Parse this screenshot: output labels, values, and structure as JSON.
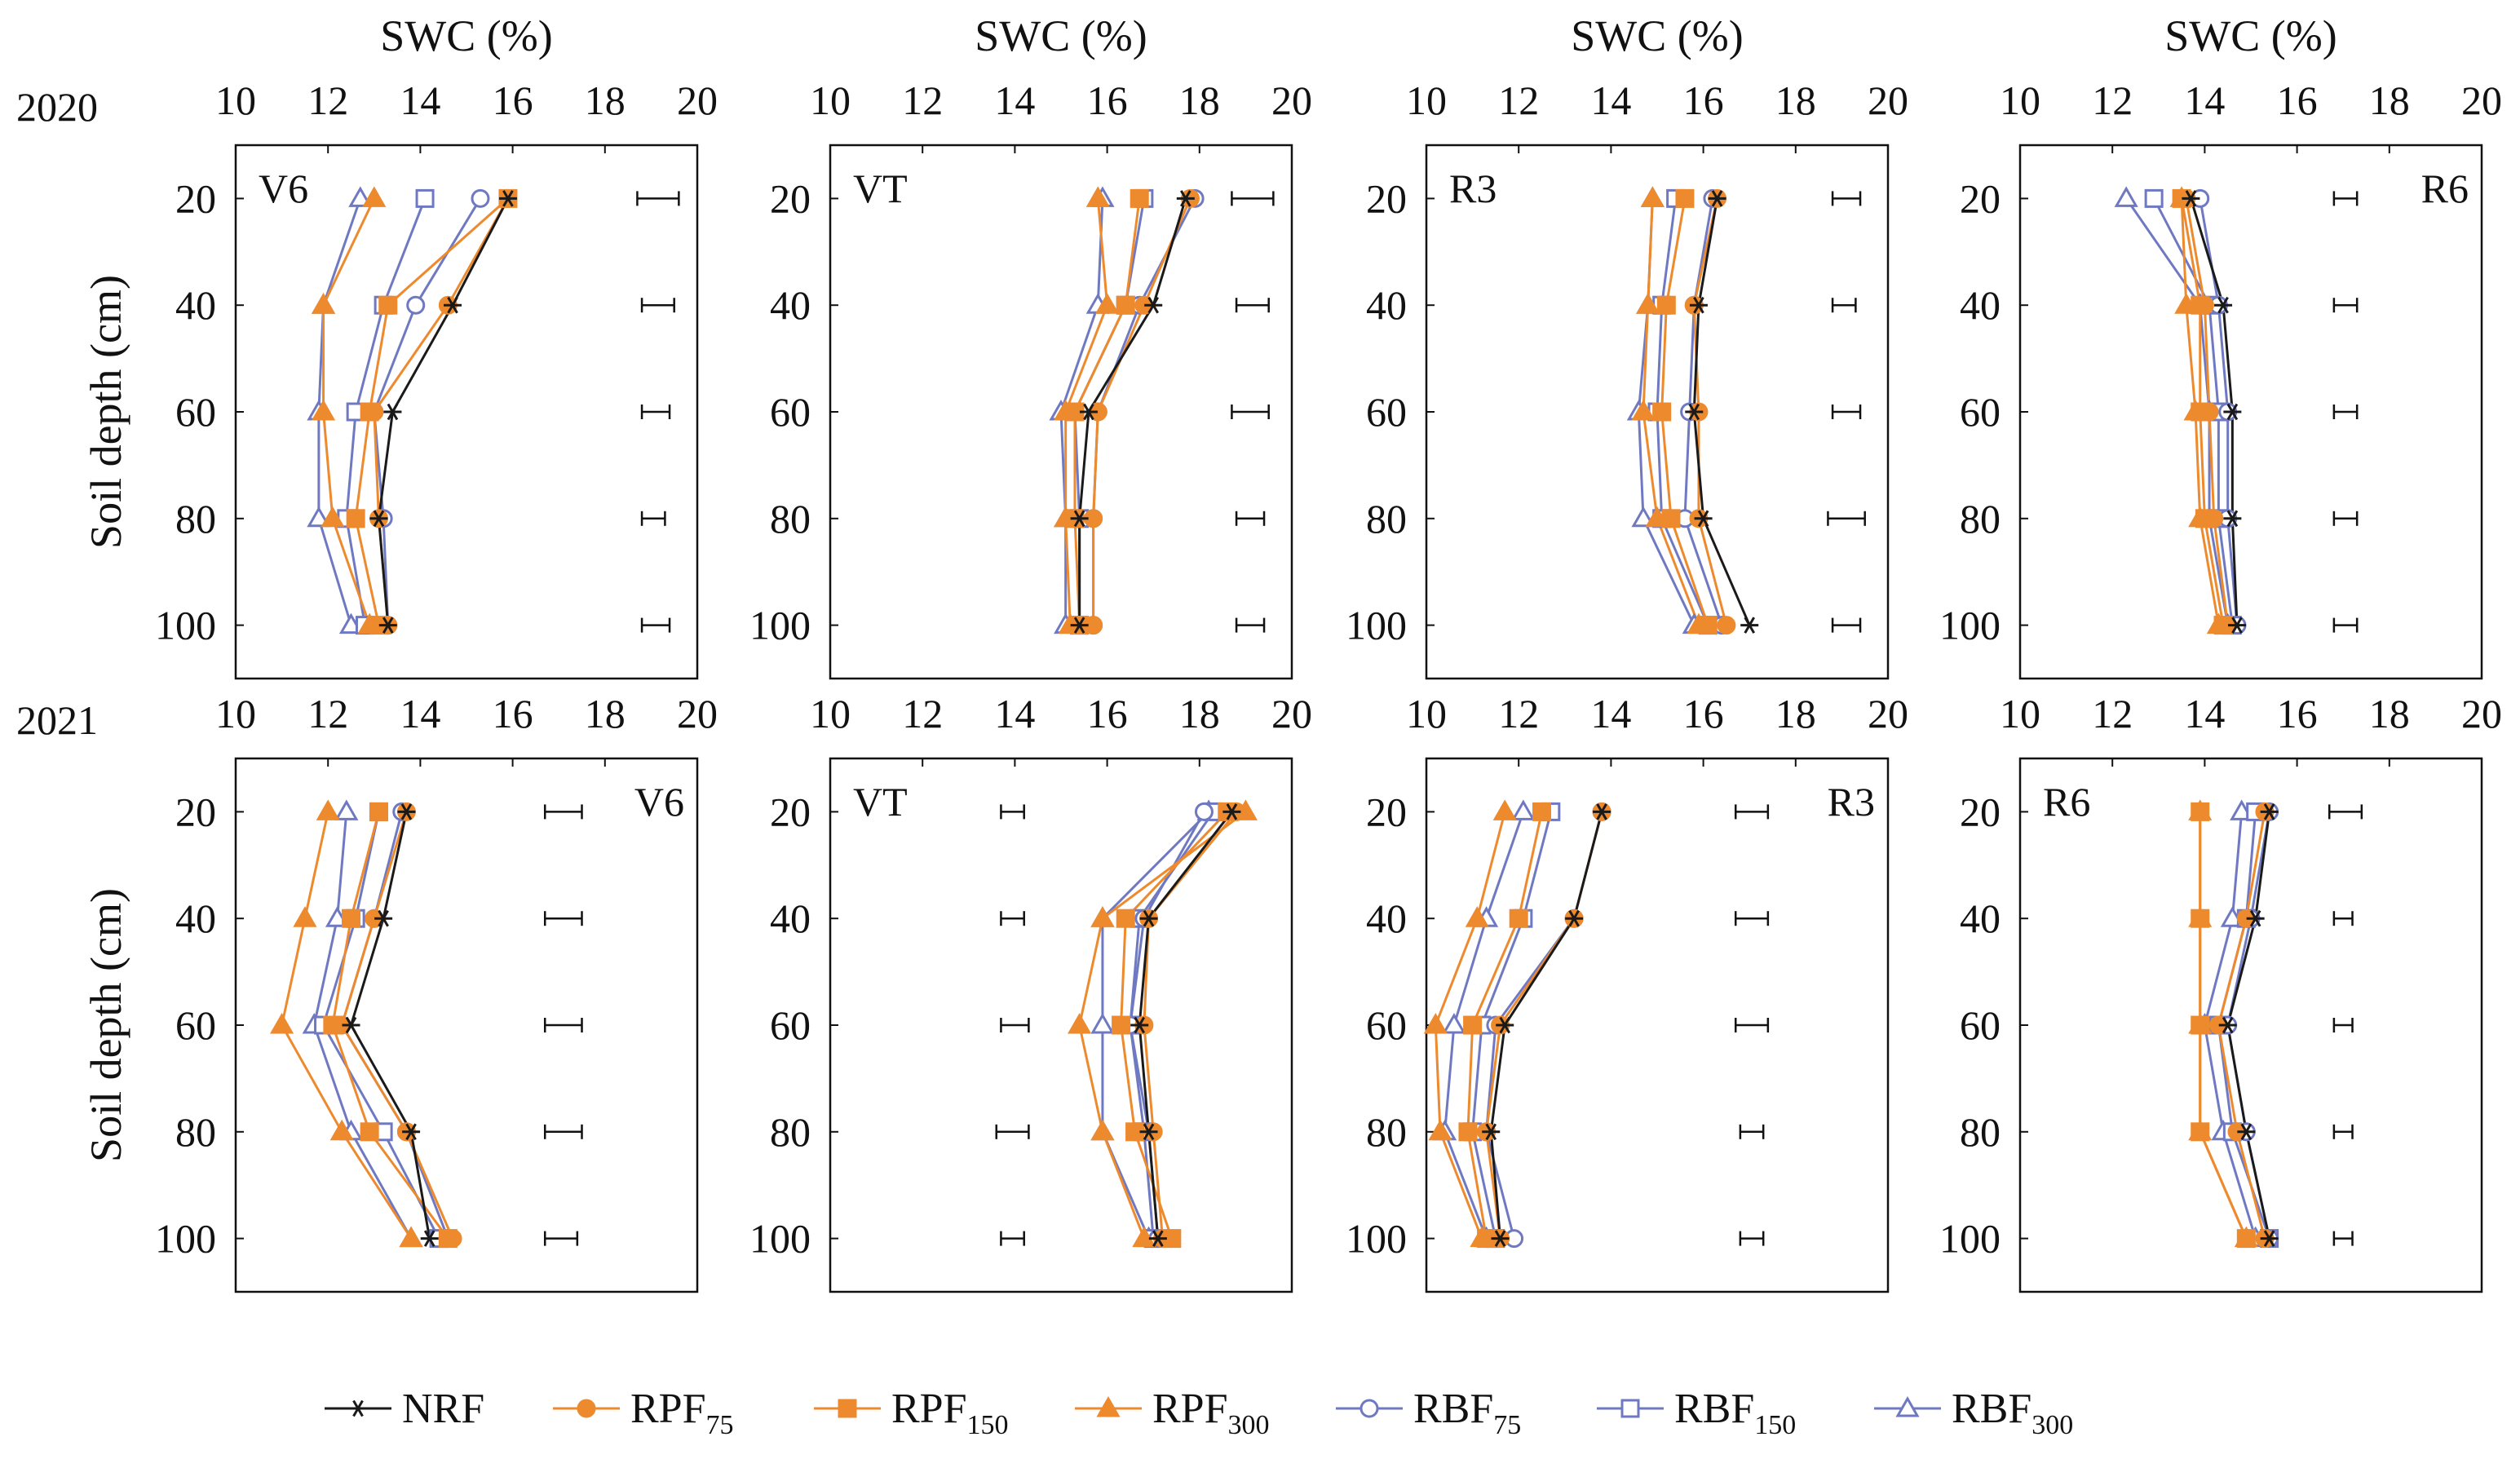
{
  "legend": [
    {
      "key": "NRF",
      "name": "NRF",
      "sub": "",
      "color": "#1a1a1a",
      "marker": "asterisk"
    },
    {
      "key": "RPF75",
      "name": "RPF",
      "sub": "75",
      "color": "#ee8a2e",
      "marker": "circle-filled"
    },
    {
      "key": "RPF150",
      "name": "RPF",
      "sub": "150",
      "color": "#ee8a2e",
      "marker": "square-filled"
    },
    {
      "key": "RPF300",
      "name": "RPF",
      "sub": "300",
      "color": "#ee8a2e",
      "marker": "triangle-filled"
    },
    {
      "key": "RBF75",
      "name": "RBF",
      "sub": "75",
      "color": "#6f79c2",
      "marker": "circle-open"
    },
    {
      "key": "RBF150",
      "name": "RBF",
      "sub": "150",
      "color": "#6f79c2",
      "marker": "square-open"
    },
    {
      "key": "RBF300",
      "name": "RBF",
      "sub": "300",
      "color": "#6f79c2",
      "marker": "triangle-open"
    }
  ],
  "chart_data": [
    {
      "type": "line",
      "year": "2020",
      "stage": "V6",
      "stage_pos": "top-left",
      "xlabel": "SWC (%)",
      "ylabel": "Soil depth (cm)",
      "xlim": [
        10,
        20
      ],
      "ylim": [
        10,
        110
      ],
      "xticks": [
        10,
        12,
        14,
        16,
        18,
        20
      ],
      "yticks": [
        20,
        40,
        60,
        80,
        100
      ],
      "depths": [
        20,
        40,
        60,
        80,
        100
      ],
      "series": [
        {
          "key": "NRF",
          "values": [
            15.9,
            14.7,
            13.4,
            13.1,
            13.3
          ]
        },
        {
          "key": "RPF75",
          "values": [
            15.9,
            14.6,
            13.0,
            13.1,
            13.3
          ]
        },
        {
          "key": "RPF150",
          "values": [
            15.9,
            13.3,
            12.9,
            12.6,
            13.1
          ]
        },
        {
          "key": "RPF300",
          "values": [
            13.0,
            11.9,
            11.9,
            12.1,
            12.9
          ]
        },
        {
          "key": "RBF75",
          "values": [
            15.3,
            13.9,
            13.0,
            13.2,
            13.3
          ]
        },
        {
          "key": "RBF150",
          "values": [
            14.1,
            13.2,
            12.6,
            12.4,
            12.8
          ]
        },
        {
          "key": "RBF300",
          "values": [
            12.7,
            11.9,
            11.8,
            11.8,
            12.5
          ]
        }
      ],
      "error_bars": [
        {
          "depth": 20,
          "low": 18.7,
          "high": 19.6
        },
        {
          "depth": 40,
          "low": 18.8,
          "high": 19.5
        },
        {
          "depth": 60,
          "low": 18.8,
          "high": 19.4
        },
        {
          "depth": 80,
          "low": 18.8,
          "high": 19.3
        },
        {
          "depth": 100,
          "low": 18.8,
          "high": 19.4
        }
      ]
    },
    {
      "type": "line",
      "year": "2020",
      "stage": "VT",
      "stage_pos": "top-left",
      "xlabel": "SWC (%)",
      "ylabel": "",
      "xlim": [
        10,
        20
      ],
      "ylim": [
        10,
        110
      ],
      "xticks": [
        10,
        12,
        14,
        16,
        18,
        20
      ],
      "yticks": [
        20,
        40,
        60,
        80,
        100
      ],
      "depths": [
        20,
        40,
        60,
        80,
        100
      ],
      "series": [
        {
          "key": "NRF",
          "values": [
            17.7,
            17.0,
            15.6,
            15.4,
            15.4
          ]
        },
        {
          "key": "RPF75",
          "values": [
            17.8,
            16.8,
            15.8,
            15.7,
            15.7
          ]
        },
        {
          "key": "RPF150",
          "values": [
            16.7,
            16.4,
            15.3,
            15.3,
            15.4
          ]
        },
        {
          "key": "RPF300",
          "values": [
            15.8,
            16.0,
            15.1,
            15.1,
            15.2
          ]
        },
        {
          "key": "RBF75",
          "values": [
            17.9,
            16.7,
            15.8,
            15.7,
            15.7
          ]
        },
        {
          "key": "RBF150",
          "values": [
            16.8,
            16.4,
            15.3,
            15.4,
            15.4
          ]
        },
        {
          "key": "RBF300",
          "values": [
            15.9,
            15.8,
            15.0,
            15.1,
            15.1
          ]
        }
      ],
      "error_bars": [
        {
          "depth": 20,
          "low": 18.7,
          "high": 19.6
        },
        {
          "depth": 40,
          "low": 18.8,
          "high": 19.5
        },
        {
          "depth": 60,
          "low": 18.7,
          "high": 19.5
        },
        {
          "depth": 80,
          "low": 18.8,
          "high": 19.4
        },
        {
          "depth": 100,
          "low": 18.8,
          "high": 19.4
        }
      ]
    },
    {
      "type": "line",
      "year": "2020",
      "stage": "R3",
      "stage_pos": "top-left",
      "xlabel": "SWC (%)",
      "ylabel": "",
      "xlim": [
        10,
        20
      ],
      "ylim": [
        10,
        110
      ],
      "xticks": [
        10,
        12,
        14,
        16,
        18,
        20
      ],
      "yticks": [
        20,
        40,
        60,
        80,
        100
      ],
      "depths": [
        20,
        40,
        60,
        80,
        100
      ],
      "series": [
        {
          "key": "NRF",
          "values": [
            16.3,
            15.9,
            15.8,
            16.0,
            17.0
          ]
        },
        {
          "key": "RPF75",
          "values": [
            16.3,
            15.8,
            15.9,
            15.9,
            16.5
          ]
        },
        {
          "key": "RPF150",
          "values": [
            15.6,
            15.2,
            15.1,
            15.3,
            16.1
          ]
        },
        {
          "key": "RPF300",
          "values": [
            14.9,
            14.8,
            14.7,
            15.0,
            15.9
          ]
        },
        {
          "key": "RBF75",
          "values": [
            16.2,
            15.8,
            15.7,
            15.6,
            16.4
          ]
        },
        {
          "key": "RBF150",
          "values": [
            15.4,
            15.1,
            15.0,
            15.1,
            16.1
          ]
        },
        {
          "key": "RBF300",
          "values": [
            14.9,
            14.8,
            14.6,
            14.7,
            15.8
          ]
        }
      ],
      "error_bars": [
        {
          "depth": 20,
          "low": 18.8,
          "high": 19.4
        },
        {
          "depth": 40,
          "low": 18.8,
          "high": 19.3
        },
        {
          "depth": 60,
          "low": 18.8,
          "high": 19.4
        },
        {
          "depth": 80,
          "low": 18.7,
          "high": 19.5
        },
        {
          "depth": 100,
          "low": 18.8,
          "high": 19.4
        }
      ]
    },
    {
      "type": "line",
      "year": "2020",
      "stage": "R6",
      "stage_pos": "top-right",
      "xlabel": "SWC (%)",
      "ylabel": "",
      "xlim": [
        10,
        20
      ],
      "ylim": [
        10,
        110
      ],
      "xticks": [
        10,
        12,
        14,
        16,
        18,
        20
      ],
      "yticks": [
        20,
        40,
        60,
        80,
        100
      ],
      "depths": [
        20,
        40,
        60,
        80,
        100
      ],
      "series": [
        {
          "key": "NRF",
          "values": [
            13.7,
            14.4,
            14.6,
            14.6,
            14.7
          ]
        },
        {
          "key": "RPF75",
          "values": [
            13.6,
            14.0,
            14.1,
            14.2,
            14.5
          ]
        },
        {
          "key": "RPF150",
          "values": [
            13.5,
            13.9,
            13.9,
            14.0,
            14.4
          ]
        },
        {
          "key": "RPF300",
          "values": [
            13.5,
            13.6,
            13.8,
            13.9,
            14.3
          ]
        },
        {
          "key": "RBF75",
          "values": [
            13.9,
            14.3,
            14.5,
            14.5,
            14.7
          ]
        },
        {
          "key": "RBF150",
          "values": [
            12.9,
            14.1,
            14.3,
            14.3,
            14.6
          ]
        },
        {
          "key": "RBF300",
          "values": [
            12.3,
            13.9,
            14.1,
            14.1,
            14.5
          ]
        }
      ],
      "error_bars": [
        {
          "depth": 20,
          "low": 16.8,
          "high": 17.3
        },
        {
          "depth": 40,
          "low": 16.8,
          "high": 17.3
        },
        {
          "depth": 60,
          "low": 16.8,
          "high": 17.3
        },
        {
          "depth": 80,
          "low": 16.8,
          "high": 17.3
        },
        {
          "depth": 100,
          "low": 16.8,
          "high": 17.3
        }
      ]
    },
    {
      "type": "line",
      "year": "2021",
      "stage": "V6",
      "stage_pos": "top-right",
      "xlabel": "",
      "ylabel": "Soil depth (cm)",
      "xlim": [
        10,
        20
      ],
      "ylim": [
        10,
        110
      ],
      "xticks": [
        10,
        12,
        14,
        16,
        18,
        20
      ],
      "yticks": [
        20,
        40,
        60,
        80,
        100
      ],
      "depths": [
        20,
        40,
        60,
        80,
        100
      ],
      "series": [
        {
          "key": "NRF",
          "values": [
            13.7,
            13.2,
            12.5,
            13.8,
            14.2
          ]
        },
        {
          "key": "RPF75",
          "values": [
            13.7,
            13.0,
            12.3,
            13.7,
            14.7
          ]
        },
        {
          "key": "RPF150",
          "values": [
            13.1,
            12.5,
            12.1,
            12.9,
            14.6
          ]
        },
        {
          "key": "RPF300",
          "values": [
            12.0,
            11.5,
            11.0,
            12.3,
            13.8
          ]
        },
        {
          "key": "RBF75",
          "values": [
            13.6,
            13.0,
            12.3,
            13.7,
            14.6
          ]
        },
        {
          "key": "RBF150",
          "values": [
            13.1,
            12.6,
            11.9,
            13.2,
            14.4
          ]
        },
        {
          "key": "RBF300",
          "values": [
            12.4,
            12.2,
            11.7,
            12.5,
            13.8
          ]
        }
      ],
      "error_bars": [
        {
          "depth": 20,
          "low": 16.7,
          "high": 17.5
        },
        {
          "depth": 40,
          "low": 16.7,
          "high": 17.5
        },
        {
          "depth": 60,
          "low": 16.7,
          "high": 17.5
        },
        {
          "depth": 80,
          "low": 16.7,
          "high": 17.5
        },
        {
          "depth": 100,
          "low": 16.7,
          "high": 17.4
        }
      ]
    },
    {
      "type": "line",
      "year": "2021",
      "stage": "VT",
      "stage_pos": "top-left",
      "xlabel": "",
      "ylabel": "",
      "xlim": [
        10,
        20
      ],
      "ylim": [
        10,
        110
      ],
      "xticks": [
        10,
        12,
        14,
        16,
        18,
        20
      ],
      "yticks": [
        20,
        40,
        60,
        80,
        100
      ],
      "depths": [
        20,
        40,
        60,
        80,
        100
      ],
      "series": [
        {
          "key": "NRF",
          "values": [
            18.7,
            16.9,
            16.7,
            16.9,
            17.1
          ]
        },
        {
          "key": "RPF75",
          "values": [
            18.8,
            16.9,
            16.8,
            17.0,
            17.2
          ]
        },
        {
          "key": "RPF150",
          "values": [
            18.6,
            16.4,
            16.3,
            16.6,
            17.4
          ]
        },
        {
          "key": "RPF300",
          "values": [
            19.0,
            15.9,
            15.4,
            15.9,
            16.8
          ]
        },
        {
          "key": "RBF75",
          "values": [
            18.1,
            16.8,
            16.5,
            16.9,
            17.1
          ]
        },
        {
          "key": "RBF150",
          "values": [
            18.3,
            16.7,
            16.5,
            16.8,
            17.0
          ]
        },
        {
          "key": "RBF300",
          "values": [
            18.2,
            15.9,
            15.9,
            15.9,
            16.9
          ]
        }
      ],
      "error_bars": [
        {
          "depth": 20,
          "low": 13.7,
          "high": 14.2
        },
        {
          "depth": 40,
          "low": 13.7,
          "high": 14.2
        },
        {
          "depth": 60,
          "low": 13.7,
          "high": 14.3
        },
        {
          "depth": 80,
          "low": 13.6,
          "high": 14.3
        },
        {
          "depth": 100,
          "low": 13.7,
          "high": 14.2
        }
      ]
    },
    {
      "type": "line",
      "year": "2021",
      "stage": "R3",
      "stage_pos": "top-right",
      "xlabel": "",
      "ylabel": "",
      "xlim": [
        10,
        20
      ],
      "ylim": [
        10,
        110
      ],
      "xticks": [
        10,
        12,
        14,
        16,
        18,
        20
      ],
      "yticks": [
        20,
        40,
        60,
        80,
        100
      ],
      "depths": [
        20,
        40,
        60,
        80,
        100
      ],
      "series": [
        {
          "key": "NRF",
          "values": [
            13.8,
            13.2,
            11.7,
            11.4,
            11.6
          ]
        },
        {
          "key": "RPF75",
          "values": [
            13.8,
            13.2,
            11.6,
            11.3,
            11.6
          ]
        },
        {
          "key": "RPF150",
          "values": [
            12.5,
            12.0,
            11.0,
            10.9,
            11.3
          ]
        },
        {
          "key": "RPF300",
          "values": [
            11.7,
            11.1,
            10.2,
            10.3,
            11.2
          ]
        },
        {
          "key": "RBF75",
          "values": [
            13.8,
            13.2,
            11.5,
            11.3,
            11.9
          ]
        },
        {
          "key": "RBF150",
          "values": [
            12.7,
            12.1,
            11.2,
            11.0,
            11.5
          ]
        },
        {
          "key": "RBF300",
          "values": [
            12.1,
            11.3,
            10.6,
            10.4,
            11.3
          ]
        }
      ],
      "error_bars": [
        {
          "depth": 20,
          "low": 16.7,
          "high": 17.4
        },
        {
          "depth": 40,
          "low": 16.7,
          "high": 17.4
        },
        {
          "depth": 60,
          "low": 16.7,
          "high": 17.4
        },
        {
          "depth": 80,
          "low": 16.8,
          "high": 17.3
        },
        {
          "depth": 100,
          "low": 16.8,
          "high": 17.3
        }
      ]
    },
    {
      "type": "line",
      "year": "2021",
      "stage": "R6",
      "stage_pos": "top-left",
      "xlabel": "",
      "ylabel": "",
      "xlim": [
        10,
        20
      ],
      "ylim": [
        10,
        110
      ],
      "xticks": [
        10,
        12,
        14,
        16,
        18,
        20
      ],
      "yticks": [
        20,
        40,
        60,
        80,
        100
      ],
      "depths": [
        20,
        40,
        60,
        80,
        100
      ],
      "series": [
        {
          "key": "NRF",
          "values": [
            15.4,
            15.1,
            14.5,
            14.9,
            15.4
          ]
        },
        {
          "key": "RPF75",
          "values": [
            15.3,
            14.9,
            14.3,
            14.7,
            15.3
          ]
        },
        {
          "key": "RPF150",
          "values": [
            13.9,
            13.9,
            13.9,
            13.9,
            14.9
          ]
        },
        {
          "key": "RPF300",
          "values": [
            13.9,
            13.9,
            13.9,
            13.9,
            14.9
          ]
        },
        {
          "key": "RBF75",
          "values": [
            15.4,
            15.0,
            14.5,
            14.9,
            15.4
          ]
        },
        {
          "key": "RBF150",
          "values": [
            15.1,
            14.9,
            14.3,
            14.6,
            15.4
          ]
        },
        {
          "key": "RBF300",
          "values": [
            14.8,
            14.6,
            14.0,
            14.4,
            15.1
          ]
        }
      ],
      "error_bars": [
        {
          "depth": 20,
          "low": 16.7,
          "high": 17.4
        },
        {
          "depth": 40,
          "low": 16.8,
          "high": 17.2
        },
        {
          "depth": 60,
          "low": 16.8,
          "high": 17.2
        },
        {
          "depth": 80,
          "low": 16.8,
          "high": 17.2
        },
        {
          "depth": 100,
          "low": 16.8,
          "high": 17.2
        }
      ]
    }
  ]
}
